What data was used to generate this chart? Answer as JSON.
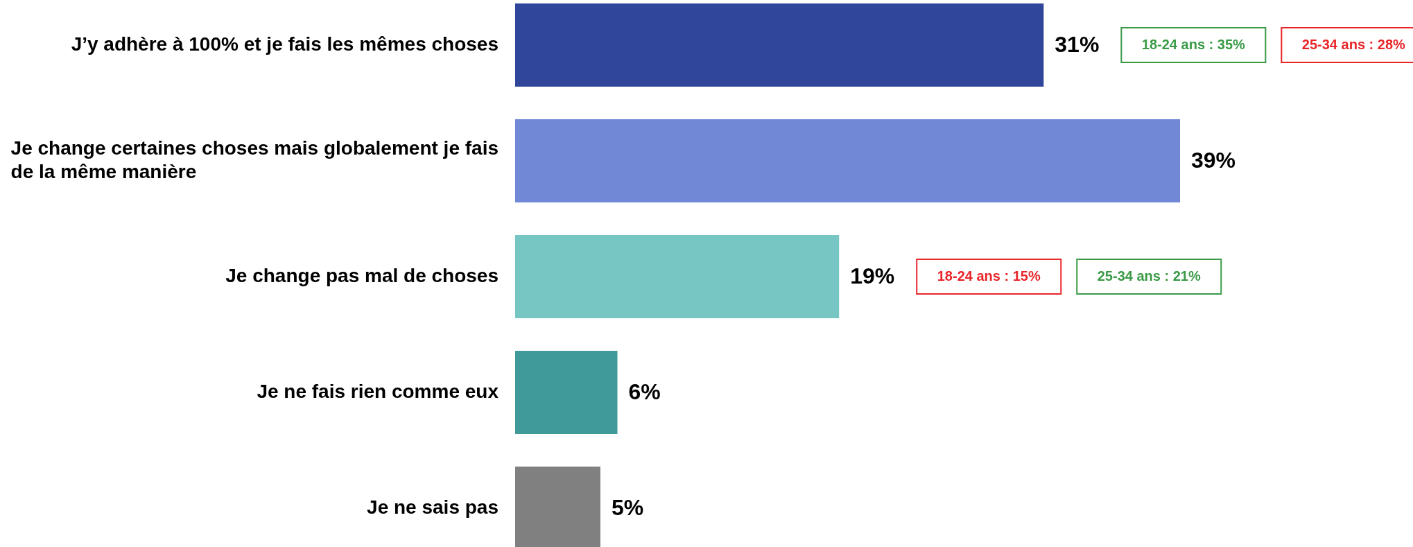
{
  "chart_data": {
    "type": "bar",
    "orientation": "horizontal",
    "categories": [
      "J’y adhère à 100% et je fais les mêmes choses",
      "Je change certaines choses mais globalement je fais de la même manière",
      "Je change pas mal de choses",
      "Je ne fais rien comme eux",
      "Je ne sais pas"
    ],
    "values": [
      31,
      39,
      19,
      6,
      5
    ],
    "colors": [
      "#30469b",
      "#7088d6",
      "#77c6c4",
      "#419a9a",
      "#808080"
    ],
    "value_labels": [
      "31%",
      "39%",
      "19%",
      "6%",
      "5%"
    ],
    "annotations": [
      "18-24 ans : 35%",
      "25-34 ans : 28%",
      "18-24 ans : 15%",
      "25-34 ans : 21%"
    ]
  }
}
